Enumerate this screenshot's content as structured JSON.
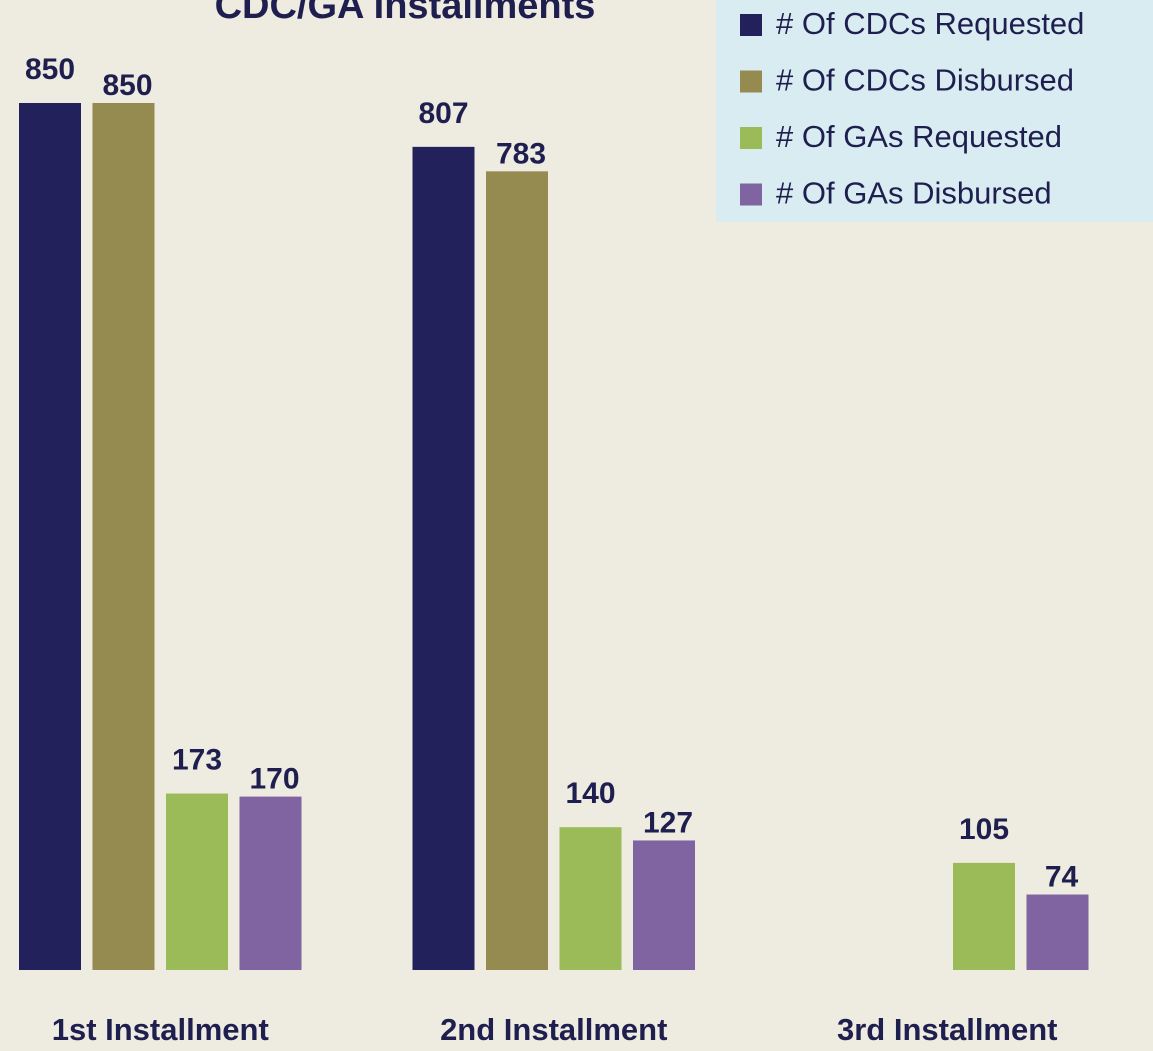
{
  "chart_data": {
    "type": "bar",
    "title": "CDC/GA Installments",
    "categories": [
      "1st Installment",
      "2nd Installment",
      "3rd Installment"
    ],
    "series": [
      {
        "name": "# Of CDCs Requested",
        "color": "#22215c",
        "values": [
          850,
          807,
          null
        ]
      },
      {
        "name": "# Of CDCs Disbursed",
        "color": "#958a50",
        "values": [
          850,
          783,
          null
        ]
      },
      {
        "name": "# Of GAs Requested",
        "color": "#9bbb59",
        "values": [
          173,
          140,
          105
        ]
      },
      {
        "name": "# Of GAs Disbursed",
        "color": "#8064a2",
        "values": [
          170,
          127,
          74
        ]
      }
    ],
    "ylim": [
      0,
      900
    ],
    "legend": "top-right"
  }
}
